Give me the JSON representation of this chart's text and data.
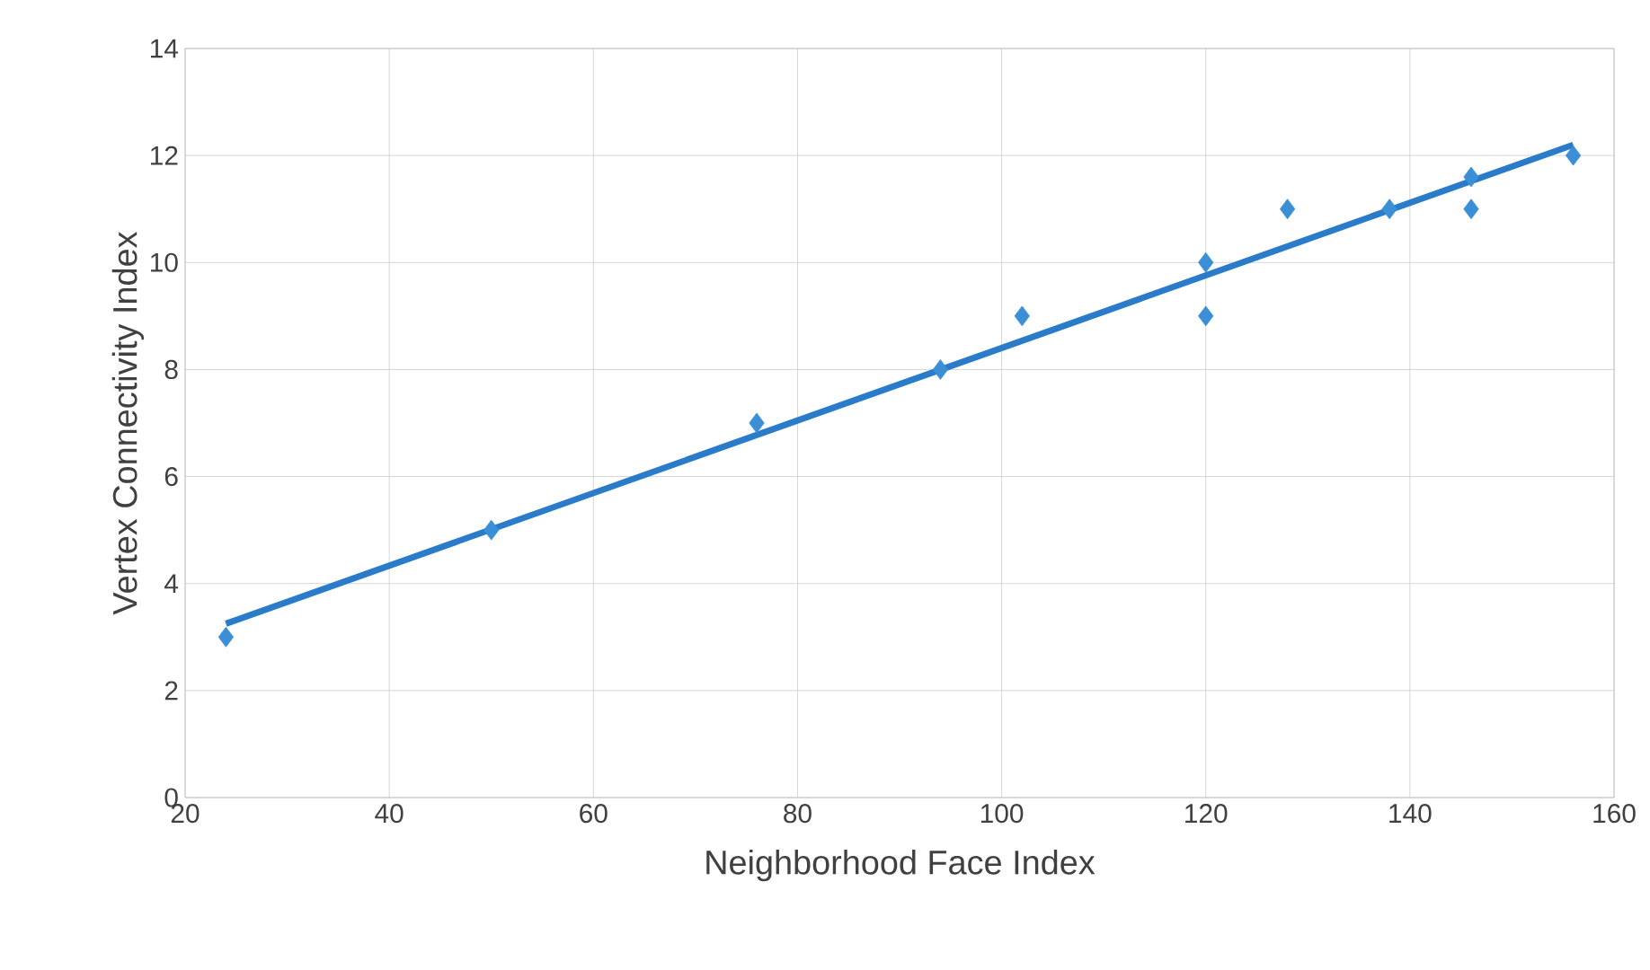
{
  "chart_data": {
    "type": "scatter",
    "xlabel": "Neighborhood Face Index",
    "ylabel": "Vertex Connectivity Index",
    "xlim": [
      20,
      160
    ],
    "xticks": [
      20,
      40,
      60,
      80,
      100,
      120,
      140,
      160
    ],
    "ylim": [
      0,
      14
    ],
    "yticks": [
      0,
      2,
      4,
      6,
      8,
      10,
      12,
      14
    ],
    "grid": true,
    "series": [
      {
        "color": "#3a8fd6",
        "marker": "diamond",
        "x": [
          24,
          50,
          76,
          94,
          102,
          120,
          120,
          128,
          138,
          146,
          146,
          156
        ],
        "values": [
          3,
          5,
          7,
          8,
          9,
          10,
          9,
          11,
          11,
          11.6,
          11,
          12
        ]
      },
      {
        "type": "line",
        "color": "#2a7bc9",
        "marker": "none",
        "line_style": "solid",
        "x": [
          24,
          156
        ],
        "values": [
          3.25,
          12.2
        ]
      }
    ]
  }
}
